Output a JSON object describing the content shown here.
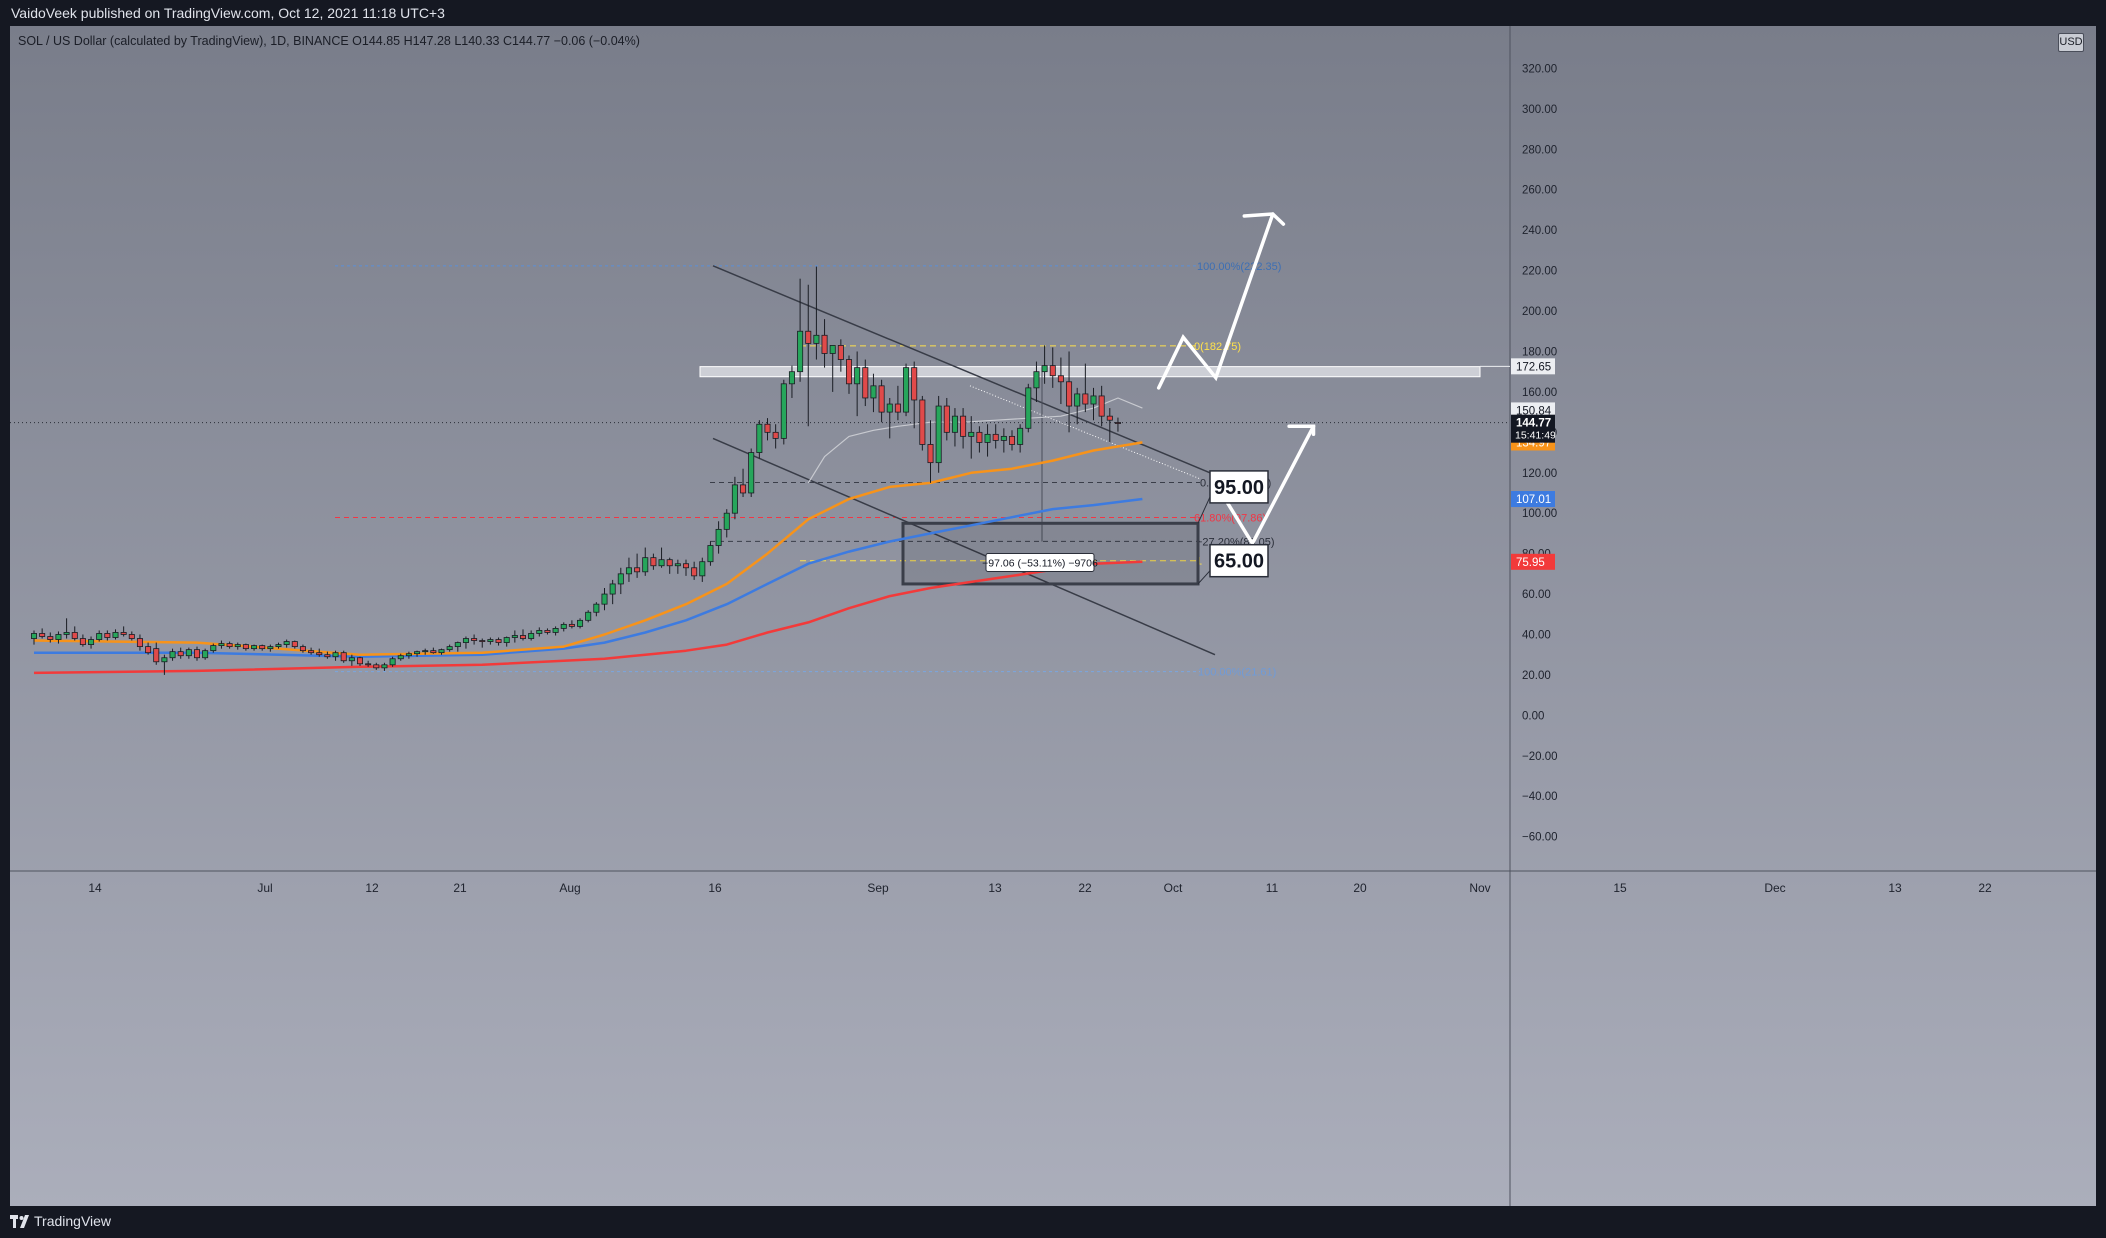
{
  "header": {
    "published_line": "VaidoVeek published on TradingView.com, Oct 12, 2021 11:18 UTC+3"
  },
  "symbol": {
    "info": "SOL / US Dollar (calculated by TradingView), 1D, BINANCE  O144.85  H147.28  L140.33  C144.77  −0.06 (−0.04%)"
  },
  "currency_button": "USD",
  "footer": {
    "brand": "TradingView"
  },
  "colors": {
    "background": "#838795",
    "up_candle": "#26a65b",
    "down_candle": "#e04a4a",
    "ema_gray": "#c8cad0",
    "ema_orange": "#f7931a",
    "ema_blue": "#3d7be0",
    "ema_red": "#f23a3a",
    "fib_yellow": "#ffe14a",
    "fib_blue": "#5b8fd6",
    "fib_red": "#f23645"
  },
  "chart_data": {
    "type": "candlestick",
    "x_axis_labels": [
      "14",
      "Jul",
      "12",
      "21",
      "Aug",
      "16",
      "Sep",
      "13",
      "22",
      "Oct",
      "11",
      "20",
      "Nov",
      "15",
      "Dec",
      "13",
      "22"
    ],
    "y_ticks": [
      "320.00",
      "300.00",
      "280.00",
      "260.00",
      "240.00",
      "220.00",
      "200.00",
      "180.00",
      "160.00",
      "140.00",
      "120.00",
      "100.00",
      "80.00",
      "60.00",
      "40.00",
      "20.00",
      "0.00",
      "−20.00",
      "−40.00",
      "−60.00"
    ],
    "ylim": [
      -77,
      341
    ],
    "ohlc": [
      {
        "o": 38.0,
        "h": 42.0,
        "l": 35.0,
        "c": 40.5
      },
      {
        "o": 40.5,
        "h": 43.0,
        "l": 38.0,
        "c": 39.0
      },
      {
        "o": 39.0,
        "h": 41.0,
        "l": 36.0,
        "c": 37.5
      },
      {
        "o": 37.5,
        "h": 41.5,
        "l": 35.5,
        "c": 40.0
      },
      {
        "o": 40.0,
        "h": 48.0,
        "l": 38.0,
        "c": 41.0
      },
      {
        "o": 41.0,
        "h": 44.0,
        "l": 37.0,
        "c": 38.0
      },
      {
        "o": 38.0,
        "h": 40.0,
        "l": 34.0,
        "c": 35.0
      },
      {
        "o": 35.0,
        "h": 39.0,
        "l": 33.0,
        "c": 37.5
      },
      {
        "o": 37.5,
        "h": 42.0,
        "l": 36.5,
        "c": 40.5
      },
      {
        "o": 40.5,
        "h": 42.0,
        "l": 37.0,
        "c": 38.5
      },
      {
        "o": 38.5,
        "h": 42.5,
        "l": 37.5,
        "c": 41.0
      },
      {
        "o": 41.0,
        "h": 44.0,
        "l": 39.0,
        "c": 40.0
      },
      {
        "o": 40.0,
        "h": 41.5,
        "l": 37.0,
        "c": 38.0
      },
      {
        "o": 38.0,
        "h": 40.0,
        "l": 32.0,
        "c": 34.0
      },
      {
        "o": 34.0,
        "h": 36.0,
        "l": 30.0,
        "c": 31.0
      },
      {
        "o": 33.0,
        "h": 36.0,
        "l": 25.0,
        "c": 26.5
      },
      {
        "o": 26.5,
        "h": 30.0,
        "l": 20.0,
        "c": 28.5
      },
      {
        "o": 28.5,
        "h": 33.0,
        "l": 27.0,
        "c": 31.5
      },
      {
        "o": 31.5,
        "h": 33.5,
        "l": 28.0,
        "c": 29.5
      },
      {
        "o": 29.5,
        "h": 33.5,
        "l": 28.0,
        "c": 32.5
      },
      {
        "o": 32.5,
        "h": 34.0,
        "l": 27.0,
        "c": 28.5
      },
      {
        "o": 28.5,
        "h": 33.0,
        "l": 27.5,
        "c": 32.0
      },
      {
        "o": 32.0,
        "h": 35.5,
        "l": 31.0,
        "c": 34.5
      },
      {
        "o": 34.5,
        "h": 37.0,
        "l": 33.0,
        "c": 35.5
      },
      {
        "o": 35.5,
        "h": 36.5,
        "l": 33.0,
        "c": 34.0
      },
      {
        "o": 34.0,
        "h": 36.0,
        "l": 32.5,
        "c": 35.0
      },
      {
        "o": 35.0,
        "h": 35.5,
        "l": 32.0,
        "c": 33.0
      },
      {
        "o": 33.0,
        "h": 35.0,
        "l": 32.0,
        "c": 34.5
      },
      {
        "o": 34.5,
        "h": 35.0,
        "l": 32.0,
        "c": 33.0
      },
      {
        "o": 33.0,
        "h": 35.0,
        "l": 31.5,
        "c": 34.0
      },
      {
        "o": 34.0,
        "h": 36.0,
        "l": 33.0,
        "c": 35.0
      },
      {
        "o": 35.0,
        "h": 37.5,
        "l": 33.5,
        "c": 36.5
      },
      {
        "o": 36.5,
        "h": 37.0,
        "l": 33.0,
        "c": 34.0
      },
      {
        "o": 34.0,
        "h": 35.0,
        "l": 31.0,
        "c": 32.0
      },
      {
        "o": 32.0,
        "h": 33.5,
        "l": 30.0,
        "c": 31.0
      },
      {
        "o": 31.0,
        "h": 33.0,
        "l": 29.0,
        "c": 30.0
      },
      {
        "o": 30.0,
        "h": 31.5,
        "l": 28.0,
        "c": 29.0
      },
      {
        "o": 29.0,
        "h": 32.0,
        "l": 27.0,
        "c": 31.0
      },
      {
        "o": 31.0,
        "h": 32.0,
        "l": 26.0,
        "c": 27.0
      },
      {
        "o": 27.0,
        "h": 30.0,
        "l": 24.5,
        "c": 28.5
      },
      {
        "o": 28.5,
        "h": 29.0,
        "l": 24.5,
        "c": 25.5
      },
      {
        "o": 25.5,
        "h": 27.0,
        "l": 24.0,
        "c": 25.0
      },
      {
        "o": 25.0,
        "h": 26.0,
        "l": 22.5,
        "c": 23.5
      },
      {
        "o": 23.5,
        "h": 26.0,
        "l": 22.0,
        "c": 25.0
      },
      {
        "o": 25.0,
        "h": 29.0,
        "l": 24.0,
        "c": 28.0
      },
      {
        "o": 28.0,
        "h": 30.5,
        "l": 27.0,
        "c": 29.5
      },
      {
        "o": 29.5,
        "h": 31.5,
        "l": 28.0,
        "c": 30.5
      },
      {
        "o": 30.5,
        "h": 32.0,
        "l": 29.0,
        "c": 31.5
      },
      {
        "o": 31.5,
        "h": 33.0,
        "l": 30.0,
        "c": 32.0
      },
      {
        "o": 32.0,
        "h": 33.5,
        "l": 30.5,
        "c": 31.0
      },
      {
        "o": 31.0,
        "h": 33.0,
        "l": 30.0,
        "c": 32.5
      },
      {
        "o": 32.5,
        "h": 35.0,
        "l": 31.5,
        "c": 34.0
      },
      {
        "o": 34.0,
        "h": 36.5,
        "l": 31.5,
        "c": 36.0
      },
      {
        "o": 36.0,
        "h": 39.0,
        "l": 33.0,
        "c": 38.0
      },
      {
        "o": 38.0,
        "h": 40.0,
        "l": 35.0,
        "c": 37.0
      },
      {
        "o": 37.0,
        "h": 38.0,
        "l": 33.5,
        "c": 36.5
      },
      {
        "o": 36.5,
        "h": 38.5,
        "l": 35.0,
        "c": 37.5
      },
      {
        "o": 37.5,
        "h": 38.5,
        "l": 34.5,
        "c": 36.0
      },
      {
        "o": 36.0,
        "h": 39.0,
        "l": 34.0,
        "c": 38.5
      },
      {
        "o": 38.5,
        "h": 42.0,
        "l": 36.0,
        "c": 39.5
      },
      {
        "o": 39.5,
        "h": 42.5,
        "l": 37.0,
        "c": 38.0
      },
      {
        "o": 38.0,
        "h": 42.0,
        "l": 37.0,
        "c": 40.5
      },
      {
        "o": 40.5,
        "h": 43.5,
        "l": 39.0,
        "c": 42.0
      },
      {
        "o": 42.0,
        "h": 43.0,
        "l": 40.0,
        "c": 41.0
      },
      {
        "o": 41.0,
        "h": 44.0,
        "l": 39.5,
        "c": 43.0
      },
      {
        "o": 43.0,
        "h": 46.0,
        "l": 41.5,
        "c": 45.0
      },
      {
        "o": 45.0,
        "h": 47.0,
        "l": 43.0,
        "c": 44.0
      },
      {
        "o": 44.0,
        "h": 48.0,
        "l": 43.0,
        "c": 47.0
      },
      {
        "o": 47.0,
        "h": 52.0,
        "l": 46.0,
        "c": 51.0
      },
      {
        "o": 51.0,
        "h": 56.0,
        "l": 49.0,
        "c": 55.0
      },
      {
        "o": 55.0,
        "h": 63.0,
        "l": 52.0,
        "c": 60.0
      },
      {
        "o": 60.0,
        "h": 67.0,
        "l": 55.0,
        "c": 65.0
      },
      {
        "o": 65.0,
        "h": 73.0,
        "l": 60.0,
        "c": 70.0
      },
      {
        "o": 70.0,
        "h": 78.0,
        "l": 66.0,
        "c": 73.0
      },
      {
        "o": 73.0,
        "h": 80.0,
        "l": 68.0,
        "c": 71.0
      },
      {
        "o": 71.0,
        "h": 83.0,
        "l": 69.0,
        "c": 78.0
      },
      {
        "o": 78.0,
        "h": 80.0,
        "l": 72.0,
        "c": 74.0
      },
      {
        "o": 74.0,
        "h": 83.0,
        "l": 73.0,
        "c": 77.0
      },
      {
        "o": 77.0,
        "h": 78.0,
        "l": 70.0,
        "c": 74.0
      },
      {
        "o": 74.0,
        "h": 77.0,
        "l": 70.0,
        "c": 75.0
      },
      {
        "o": 75.0,
        "h": 77.0,
        "l": 69.0,
        "c": 73.0
      },
      {
        "o": 73.0,
        "h": 76.0,
        "l": 67.0,
        "c": 69.0
      },
      {
        "o": 69.0,
        "h": 78.0,
        "l": 66.0,
        "c": 76.0
      },
      {
        "o": 76.0,
        "h": 86.0,
        "l": 74.0,
        "c": 84.0
      },
      {
        "o": 84.0,
        "h": 96.0,
        "l": 80.0,
        "c": 92.0
      },
      {
        "o": 92.0,
        "h": 102.0,
        "l": 88.0,
        "c": 100.0
      },
      {
        "o": 100.0,
        "h": 118.0,
        "l": 97.0,
        "c": 114.0
      },
      {
        "o": 114.0,
        "h": 122.0,
        "l": 108.0,
        "c": 110.0
      },
      {
        "o": 110.0,
        "h": 132.0,
        "l": 108.0,
        "c": 130.0
      },
      {
        "o": 130.0,
        "h": 146.0,
        "l": 127.0,
        "c": 144.0
      },
      {
        "o": 144.0,
        "h": 147.0,
        "l": 136.0,
        "c": 140.0
      },
      {
        "o": 140.0,
        "h": 144.0,
        "l": 132.0,
        "c": 137.0
      },
      {
        "o": 137.0,
        "h": 166.0,
        "l": 134.0,
        "c": 164.0
      },
      {
        "o": 164.0,
        "h": 173.0,
        "l": 157.0,
        "c": 170.0
      },
      {
        "o": 170.0,
        "h": 216.0,
        "l": 165.0,
        "c": 190.0
      },
      {
        "o": 190.0,
        "h": 213.0,
        "l": 143.0,
        "c": 184.0
      },
      {
        "o": 184.0,
        "h": 222.0,
        "l": 176.0,
        "c": 188.0
      },
      {
        "o": 188.0,
        "h": 196.0,
        "l": 172.0,
        "c": 179.0
      },
      {
        "o": 179.0,
        "h": 183.0,
        "l": 160.0,
        "c": 183.0
      },
      {
        "o": 183.0,
        "h": 186.0,
        "l": 170.0,
        "c": 176.0
      },
      {
        "o": 176.0,
        "h": 178.0,
        "l": 159.0,
        "c": 164.0
      },
      {
        "o": 164.0,
        "h": 180.0,
        "l": 148.0,
        "c": 172.0
      },
      {
        "o": 172.0,
        "h": 176.0,
        "l": 153.0,
        "c": 157.0
      },
      {
        "o": 157.0,
        "h": 169.0,
        "l": 150.0,
        "c": 163.0
      },
      {
        "o": 163.0,
        "h": 166.0,
        "l": 145.0,
        "c": 150.0
      },
      {
        "o": 150.0,
        "h": 157.0,
        "l": 137.0,
        "c": 154.0
      },
      {
        "o": 154.0,
        "h": 163.0,
        "l": 146.0,
        "c": 150.0
      },
      {
        "o": 150.0,
        "h": 174.0,
        "l": 148.0,
        "c": 172.0
      },
      {
        "o": 172.0,
        "h": 175.0,
        "l": 142.0,
        "c": 156.0
      },
      {
        "o": 156.0,
        "h": 158.0,
        "l": 131.0,
        "c": 134.0
      },
      {
        "o": 134.0,
        "h": 146.0,
        "l": 115.0,
        "c": 125.0
      },
      {
        "o": 125.0,
        "h": 158.0,
        "l": 120.0,
        "c": 153.0
      },
      {
        "o": 153.0,
        "h": 157.0,
        "l": 136.0,
        "c": 140.0
      },
      {
        "o": 140.0,
        "h": 152.0,
        "l": 133.0,
        "c": 148.0
      },
      {
        "o": 148.0,
        "h": 152.0,
        "l": 132.0,
        "c": 138.0
      },
      {
        "o": 138.0,
        "h": 148.0,
        "l": 127.0,
        "c": 140.0
      },
      {
        "o": 140.0,
        "h": 143.0,
        "l": 130.0,
        "c": 135.0
      },
      {
        "o": 135.0,
        "h": 144.0,
        "l": 128.0,
        "c": 139.0
      },
      {
        "o": 139.0,
        "h": 144.0,
        "l": 132.0,
        "c": 136.0
      },
      {
        "o": 136.0,
        "h": 142.0,
        "l": 130.0,
        "c": 138.0
      },
      {
        "o": 138.0,
        "h": 141.0,
        "l": 131.0,
        "c": 134.0
      },
      {
        "o": 134.0,
        "h": 144.0,
        "l": 130.0,
        "c": 142.0
      },
      {
        "o": 142.0,
        "h": 164.0,
        "l": 140.0,
        "c": 162.0
      },
      {
        "o": 162.0,
        "h": 175.0,
        "l": 155.0,
        "c": 170.0
      },
      {
        "o": 170.0,
        "h": 183.0,
        "l": 164.0,
        "c": 173.0
      },
      {
        "o": 173.0,
        "h": 182.0,
        "l": 162.0,
        "c": 168.0
      },
      {
        "o": 168.0,
        "h": 177.0,
        "l": 154.0,
        "c": 165.0
      },
      {
        "o": 165.0,
        "h": 180.0,
        "l": 140.0,
        "c": 153.0
      },
      {
        "o": 153.0,
        "h": 162.0,
        "l": 144.0,
        "c": 159.0
      },
      {
        "o": 159.0,
        "h": 174.0,
        "l": 150.0,
        "c": 154.0
      },
      {
        "o": 154.0,
        "h": 162.0,
        "l": 146.0,
        "c": 158.0
      },
      {
        "o": 158.0,
        "h": 163.0,
        "l": 143.0,
        "c": 148.0
      },
      {
        "o": 148.0,
        "h": 152.0,
        "l": 135.0,
        "c": 146.0
      },
      {
        "o": 144.85,
        "h": 147.28,
        "l": 140.33,
        "c": 144.77
      }
    ],
    "ema_gray_values": [
      [
        95,
        115
      ],
      [
        97,
        128
      ],
      [
        100,
        138
      ],
      [
        103,
        141
      ],
      [
        106,
        143
      ],
      [
        110,
        145
      ],
      [
        114,
        145
      ],
      [
        118,
        146
      ],
      [
        122,
        147
      ],
      [
        126,
        148
      ],
      [
        130,
        152
      ],
      [
        133,
        157
      ],
      [
        136,
        152
      ]
    ],
    "ema_orange_values": [
      [
        0,
        37
      ],
      [
        20,
        36
      ],
      [
        40,
        30
      ],
      [
        55,
        31
      ],
      [
        65,
        34
      ],
      [
        70,
        40
      ],
      [
        75,
        47
      ],
      [
        80,
        55
      ],
      [
        85,
        65
      ],
      [
        90,
        80
      ],
      [
        95,
        97
      ],
      [
        100,
        107
      ],
      [
        105,
        113
      ],
      [
        110,
        115
      ],
      [
        115,
        120
      ],
      [
        120,
        122
      ],
      [
        125,
        126
      ],
      [
        130,
        131
      ],
      [
        136,
        135
      ]
    ],
    "ema_blue_values": [
      [
        0,
        31
      ],
      [
        20,
        31
      ],
      [
        40,
        29
      ],
      [
        55,
        30
      ],
      [
        65,
        33
      ],
      [
        70,
        36
      ],
      [
        75,
        41
      ],
      [
        80,
        47
      ],
      [
        85,
        55
      ],
      [
        90,
        65
      ],
      [
        95,
        75
      ],
      [
        100,
        81
      ],
      [
        105,
        86
      ],
      [
        110,
        90
      ],
      [
        115,
        94
      ],
      [
        120,
        98
      ],
      [
        125,
        102
      ],
      [
        130,
        104
      ],
      [
        136,
        107
      ]
    ],
    "ema_red_values": [
      [
        0,
        21
      ],
      [
        20,
        22
      ],
      [
        40,
        24
      ],
      [
        55,
        25
      ],
      [
        65,
        27
      ],
      [
        70,
        28
      ],
      [
        75,
        30
      ],
      [
        80,
        32
      ],
      [
        85,
        35
      ],
      [
        90,
        41
      ],
      [
        95,
        46
      ],
      [
        100,
        53
      ],
      [
        105,
        59
      ],
      [
        110,
        63
      ],
      [
        115,
        66
      ],
      [
        120,
        69
      ],
      [
        125,
        72
      ],
      [
        130,
        75
      ],
      [
        136,
        76
      ]
    ],
    "price_labels": [
      {
        "text": "172.65",
        "value": 172.65,
        "bg": "#eceef2",
        "fg": "#131722"
      },
      {
        "text": "150.84",
        "value": 150.84,
        "bg": "#eceef2",
        "fg": "#131722"
      },
      {
        "text": "134.97",
        "value": 134.97,
        "bg": "#f7931a",
        "fg": "#ffffff"
      },
      {
        "text": "107.01",
        "value": 107.01,
        "bg": "#3d7be0",
        "fg": "#ffffff"
      },
      {
        "text": "75.95",
        "value": 75.95,
        "bg": "#f23a3a",
        "fg": "#ffffff"
      }
    ],
    "current_price": {
      "price": "144.77",
      "countdown": "15:41:49",
      "value": 144.77
    },
    "annotations": {
      "fib_top": {
        "label": "100.00%(222.35)",
        "value": 222.35
      },
      "fib_0": {
        "label": "0(182.75)",
        "value": 182.75
      },
      "fib_0_low": {
        "label": "0.00%(115.19)",
        "value": 115.19
      },
      "fib_618": {
        "label": "61.80%(97.86)",
        "value": 97.86
      },
      "fib_272": {
        "label": "−27.20%(86.05)",
        "value": 86.05
      },
      "fib_1": {
        "label": "1",
        "value": 76.5
      },
      "fib_bottom": {
        "label": "100.00%(21.61)",
        "value": 21.61
      },
      "measure": {
        "label": "−97.06 (−53.11%) −9706"
      },
      "target_high": "95.00",
      "target_low": "65.00"
    }
  }
}
